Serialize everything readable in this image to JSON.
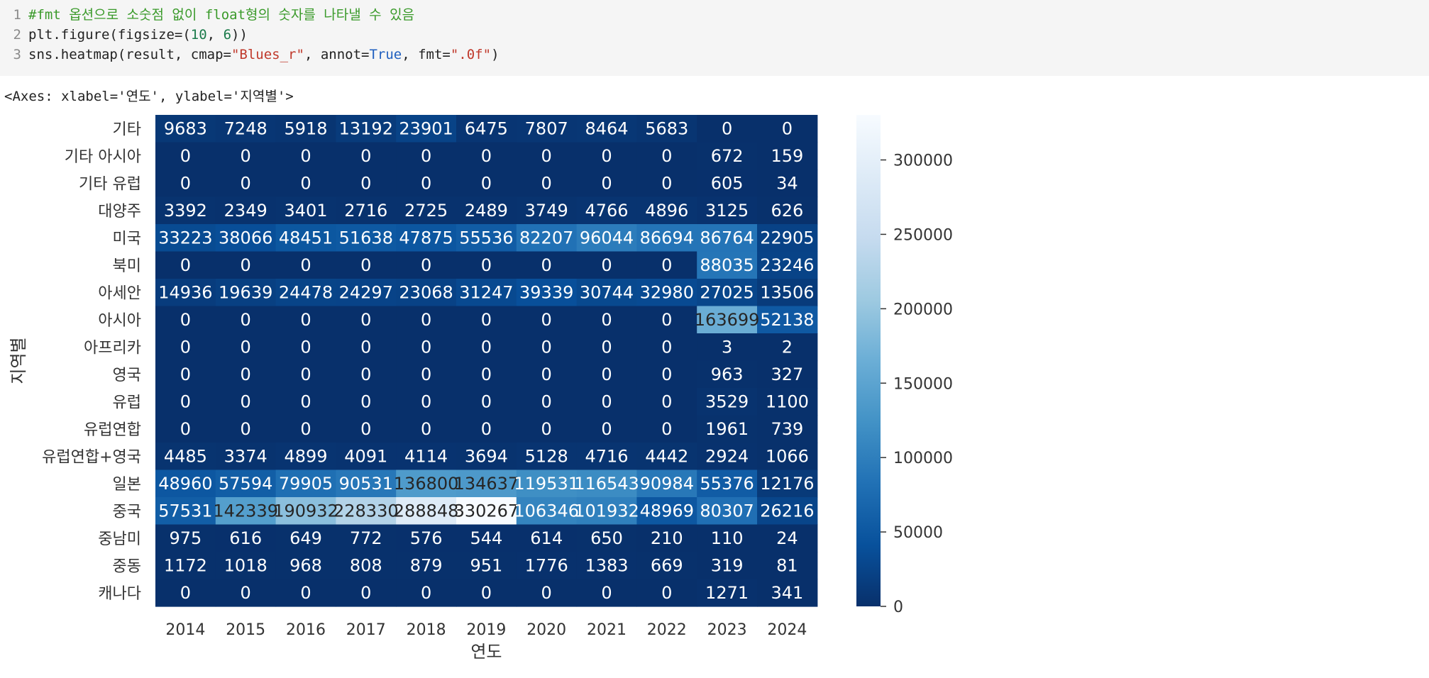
{
  "code": {
    "lines": [
      {
        "num": "1",
        "comment": "#fmt 옵션으로 소숫점 없이 float형의 숫자를 나타낼 수 있음"
      },
      {
        "num": "2",
        "pre": "plt.figure(figsize=(",
        "n1": "10",
        "mid": ", ",
        "n2": "6",
        "post": "))"
      },
      {
        "num": "3",
        "pre": "sns.heatmap(result, cmap=",
        "s1": "\"Blues_r\"",
        "mid": ", annot=",
        "kw": "True",
        "mid2": ", fmt=",
        "s2": "\".0f\"",
        "post": ")"
      }
    ]
  },
  "output": {
    "text": "<Axes: xlabel='연도', ylabel='지역별'>"
  },
  "colors": {
    "cmap": "Blues_r",
    "cmap_stops": [
      "#08306b",
      "#08519c",
      "#2171b5",
      "#4292c6",
      "#6baed6",
      "#9ecae1",
      "#c6dbef",
      "#deebf7",
      "#f7fbff"
    ]
  },
  "chart_data": {
    "type": "heatmap",
    "xlabel": "연도",
    "ylabel": "지역별",
    "x": [
      "2014",
      "2015",
      "2016",
      "2017",
      "2018",
      "2019",
      "2020",
      "2021",
      "2022",
      "2023",
      "2024"
    ],
    "y": [
      "기타",
      "기타 아시아",
      "기타 유럽",
      "대양주",
      "미국",
      "북미",
      "아세안",
      "아시아",
      "아프리카",
      "영국",
      "유럽",
      "유럽연합",
      "유럽연합+영국",
      "일본",
      "중국",
      "중남미",
      "중동",
      "캐나다"
    ],
    "values": [
      [
        9683,
        7248,
        5918,
        13192,
        23901,
        6475,
        7807,
        8464,
        5683,
        0,
        0
      ],
      [
        0,
        0,
        0,
        0,
        0,
        0,
        0,
        0,
        0,
        672,
        159
      ],
      [
        0,
        0,
        0,
        0,
        0,
        0,
        0,
        0,
        0,
        605,
        34
      ],
      [
        3392,
        2349,
        3401,
        2716,
        2725,
        2489,
        3749,
        4766,
        4896,
        3125,
        626
      ],
      [
        33223,
        38066,
        48451,
        51638,
        47875,
        55536,
        82207,
        96044,
        86694,
        86764,
        22905
      ],
      [
        0,
        0,
        0,
        0,
        0,
        0,
        0,
        0,
        0,
        88035,
        23246
      ],
      [
        14936,
        19639,
        24478,
        24297,
        23068,
        31247,
        39339,
        30744,
        32980,
        27025,
        13506
      ],
      [
        0,
        0,
        0,
        0,
        0,
        0,
        0,
        0,
        0,
        163699,
        52138
      ],
      [
        0,
        0,
        0,
        0,
        0,
        0,
        0,
        0,
        0,
        3,
        2
      ],
      [
        0,
        0,
        0,
        0,
        0,
        0,
        0,
        0,
        0,
        963,
        327
      ],
      [
        0,
        0,
        0,
        0,
        0,
        0,
        0,
        0,
        0,
        3529,
        1100
      ],
      [
        0,
        0,
        0,
        0,
        0,
        0,
        0,
        0,
        0,
        1961,
        739
      ],
      [
        4485,
        3374,
        4899,
        4091,
        4114,
        3694,
        5128,
        4716,
        4442,
        2924,
        1066
      ],
      [
        48960,
        57594,
        79905,
        90531,
        136800,
        134637,
        119531,
        116543,
        90984,
        55376,
        12176
      ],
      [
        57531,
        142339,
        190932,
        228330,
        288848,
        330267,
        106346,
        101932,
        48969,
        80307,
        26216
      ],
      [
        975,
        616,
        649,
        772,
        576,
        544,
        614,
        650,
        210,
        110,
        24
      ],
      [
        1172,
        1018,
        968,
        808,
        879,
        951,
        1776,
        1383,
        669,
        319,
        81
      ],
      [
        0,
        0,
        0,
        0,
        0,
        0,
        0,
        0,
        0,
        1271,
        341
      ]
    ],
    "vmin": 0,
    "vmax": 330267,
    "colorbar": {
      "ticks": [
        0,
        50000,
        100000,
        150000,
        200000,
        250000,
        300000
      ],
      "tick_labels": [
        "0",
        "50000",
        "100000",
        "150000",
        "200000",
        "250000",
        "300000"
      ]
    },
    "annot": true,
    "fmt": ".0f"
  }
}
